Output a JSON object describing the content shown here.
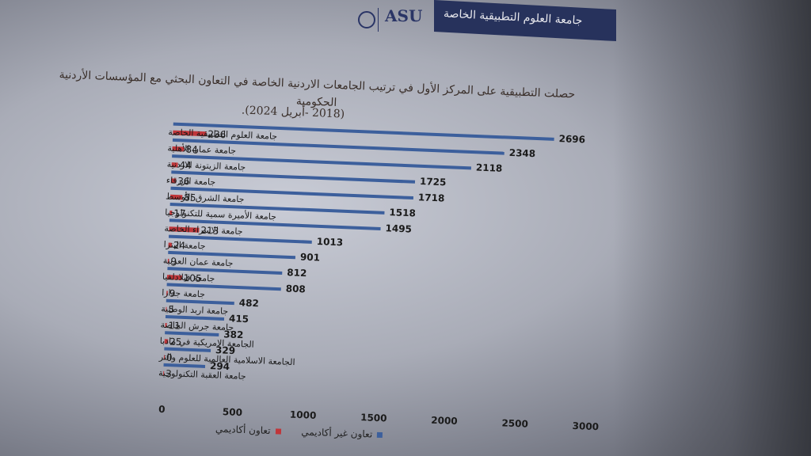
{
  "header": {
    "university_name": "جامعة العلوم التطبيقية الخاصة",
    "logo": "ASU"
  },
  "chart_data": {
    "type": "bar",
    "orientation": "horizontal",
    "title": "حصلت التطبيقية على المركز الأول في ترتيب الجامعات الاردنية الخاصة في التعاون البحثي مع المؤسسات الأردنية الحكومية",
    "subtitle": "(2018 -أبريل 2024).",
    "categories": [
      "جامعة العلوم التطبيقية الخاصة",
      "جامعة عمان الأهلية",
      "جامعة الزيتونة الاردنية",
      "جامعة الزرقاء",
      "جامعة الشرق الأوسط",
      "جامعة الأميرة سمية للتكنولوجيا",
      "جامعة الاسراء الخاصة",
      "جامعة البترا",
      "جامعة عمان العربية",
      "جامعة فيلادلفيا",
      "جامعة جدارا",
      "جامعة اربد الوطنية",
      "جامعة جرش الخاصة",
      "الجامعة الامريكية في مادبا",
      "الجامعة الاسلامية العالمية للعلوم والتر",
      "جامعة العقبة التكنولوجية"
    ],
    "series": [
      {
        "name": "تعاون أكاديمي",
        "color": "#c0363a",
        "values": [
          236,
          84,
          44,
          36,
          85,
          17,
          213,
          24,
          9,
          105,
          9,
          5,
          11,
          25,
          0,
          3
        ]
      },
      {
        "name": "تعاون غير أكاديمي",
        "color": "#3c5f9c",
        "values": [
          2696,
          2348,
          2118,
          1725,
          1718,
          1518,
          1495,
          1013,
          901,
          812,
          808,
          482,
          415,
          382,
          329,
          294
        ]
      }
    ],
    "xlim": [
      0,
      3000
    ],
    "xticks": [
      "0",
      "500",
      "1000",
      "1500",
      "2000",
      "2500",
      "3000"
    ],
    "legend_position": "bottom"
  }
}
